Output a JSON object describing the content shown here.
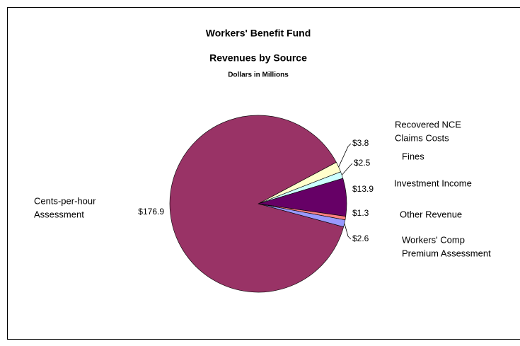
{
  "chart_data": {
    "type": "pie",
    "title": [
      "Workers' Benefit Fund",
      "Revenues by Source"
    ],
    "subtitle": "Dollars in Millions",
    "categories": [
      [
        "Recovered NCE",
        "Claims Costs"
      ],
      [
        "Fines"
      ],
      [
        "Investment Income"
      ],
      [
        "Other Revenue"
      ],
      [
        "Workers' Comp",
        "Premium Assessment"
      ],
      [
        "Cents-per-hour",
        "Assessment"
      ]
    ],
    "values": [
      3.8,
      2.5,
      13.9,
      1.3,
      2.6,
      176.9
    ],
    "value_labels": [
      "$3.8",
      "$2.5",
      "$13.9",
      "$1.3",
      "$2.6",
      "$176.9"
    ],
    "colors": [
      "#ffffcc",
      "#ccffff",
      "#660066",
      "#ff8080",
      "#9999ff",
      "#993366"
    ]
  }
}
